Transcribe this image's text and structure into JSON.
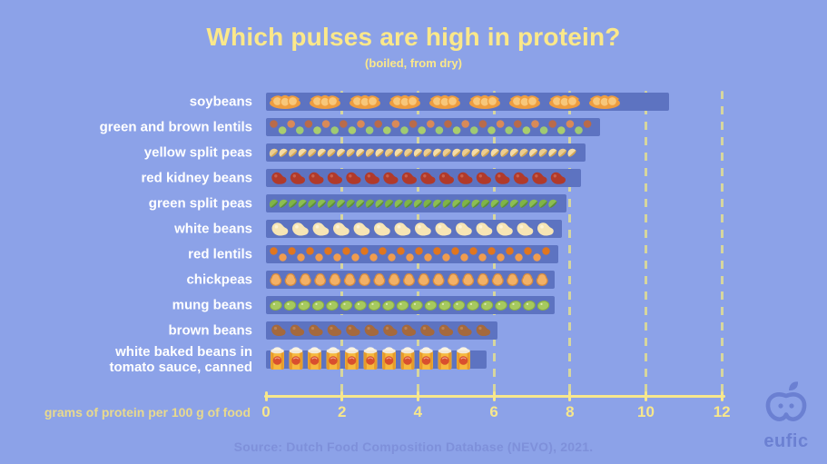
{
  "header": {
    "title": "Which pulses are high in protein?",
    "subtitle": "(boiled, from dry)"
  },
  "chart_data": {
    "type": "bar",
    "orientation": "horizontal",
    "title": "Which pulses are high in protein?",
    "subtitle": "(boiled, from dry)",
    "categories": [
      "soybeans",
      "green and brown lentils",
      "yellow split peas",
      "red kidney beans",
      "green split peas",
      "white beans",
      "red lentils",
      "chickpeas",
      "mung beans",
      "brown beans",
      "white baked beans in\ntomato sauce, canned"
    ],
    "values": [
      10.6,
      8.8,
      8.4,
      8.3,
      7.9,
      7.8,
      7.7,
      7.6,
      7.6,
      6.1,
      5.8
    ],
    "icons": [
      "soybean-pod",
      "mixed-lentils",
      "yellow-split-pea",
      "red-kidney-bean",
      "green-split-pea",
      "white-bean",
      "red-lentil",
      "chickpea",
      "mung-bean",
      "brown-bean",
      "baked-beans-can"
    ],
    "xlabel": "grams of protein per 100 g of food",
    "xlim": [
      0,
      12
    ],
    "xticks": [
      0,
      2,
      4,
      6,
      8,
      10,
      12
    ],
    "grid": "dashed-vertical-yellow",
    "legend": "none",
    "colors": {
      "background": "#8ca2e8",
      "bar": "#5d73c1",
      "title": "#fbe88a",
      "axis": "#f7e78c",
      "gridline": "#d6d69e",
      "category_text": "#ffffff",
      "caption_text": "#e9da8d",
      "source_text": "#7e90da",
      "logo": "#6b80d2"
    }
  },
  "footer": {
    "source": "Source: Dutch Food Composition Database (NEVO), 2021.",
    "logo_text": "eufic"
  }
}
